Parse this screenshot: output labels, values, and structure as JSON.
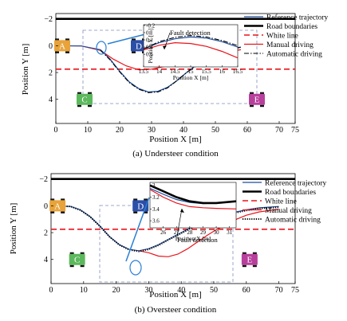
{
  "panels": [
    {
      "caption": "(a) Understeer condition",
      "chart_data": {
        "type": "line",
        "xlabel": "Position X [m]",
        "ylabel": "Position Y [m]",
        "xlim": [
          0,
          75
        ],
        "ylim": [
          5.8,
          -2.4
        ],
        "xticks": [
          0,
          10,
          20,
          30,
          40,
          50,
          60,
          70,
          75
        ],
        "yticks": [
          -2,
          0,
          2,
          4
        ],
        "series": [
          {
            "name": "Reference trajectory",
            "color": "#1f4e9e",
            "style": "solid",
            "x": [
              0,
              8,
              14,
              17,
              20,
              23,
              26,
              29,
              32,
              35,
              38,
              41,
              44,
              47,
              50,
              54,
              58
            ],
            "y": [
              0,
              0.02,
              0.3,
              1.0,
              1.9,
              2.7,
              3.2,
              3.45,
              3.4,
              3.1,
              2.6,
              2.0,
              1.45,
              1.0,
              0.6,
              0.25,
              0.1
            ]
          },
          {
            "name": "Road boundaries",
            "color": "#000000",
            "style": "thick",
            "x": [
              0,
              75
            ],
            "y": [
              -2.0,
              -2.0
            ]
          },
          {
            "name": "White line",
            "color": "#e8141b",
            "style": "dash",
            "x": [
              0,
              75
            ],
            "y": [
              1.75,
              1.75
            ]
          },
          {
            "name": "Manual driving",
            "color": "#e8141b",
            "style": "solid",
            "x": [
              0,
              8,
              14,
              18,
              22,
              26,
              30,
              34,
              38,
              42,
              46,
              50,
              54,
              58
            ],
            "y": [
              0,
              0.02,
              0.35,
              1.0,
              1.5,
              1.8,
              1.75,
              1.55,
              1.3,
              1.05,
              0.85,
              0.65,
              0.45,
              0.3
            ]
          },
          {
            "name": "Automatic driving",
            "color": "#000000",
            "style": "dashdot",
            "x": [
              14,
              17,
              20,
              23,
              26,
              29,
              32,
              35,
              38,
              41,
              44,
              47,
              50,
              54,
              58
            ],
            "y": [
              0.35,
              1.05,
              1.95,
              2.75,
              3.25,
              3.5,
              3.45,
              3.15,
              2.6,
              2.0,
              1.5,
              1.05,
              0.65,
              0.3,
              0.12
            ]
          }
        ],
        "inset": {
          "xlabel": "Position X [m]",
          "ylabel": "Position Y [m]",
          "xlim": [
            13.5,
            16.5
          ],
          "ylim": [
            0.95,
            -0.22
          ],
          "xticks": [
            13.5,
            14,
            14.5,
            15,
            15.5,
            16,
            16.5
          ],
          "xtick_labels": [
            "13.5",
            "14",
            "14.5",
            "15",
            "15.5",
            "16",
            "16.5"
          ],
          "yticks": [
            -0.2,
            0,
            0.2,
            0.4,
            0.6
          ],
          "ytick_labels": [
            "-0.2",
            "0",
            "0.2",
            "0.4",
            "0.6"
          ],
          "annotation": "Fault detection",
          "curves": [
            {
              "x": [
                13.5,
                14,
                14.5,
                15,
                15.5,
                16,
                16.5
              ],
              "y": [
                0.45,
                0.28,
                0.17,
                0.12,
                0.15,
                0.25,
                0.4
              ],
              "color": "#1f4e9e",
              "style": "solid"
            },
            {
              "x": [
                13.5,
                14,
                14.5,
                15,
                15.5,
                16,
                16.5
              ],
              "y": [
                0.48,
                0.35,
                0.28,
                0.3,
                0.38,
                0.52,
                0.7
              ],
              "color": "#e8141b",
              "style": "solid"
            },
            {
              "x": [
                13.5,
                14,
                14.5,
                15,
                15.5,
                16,
                16.5
              ],
              "y": [
                0.45,
                0.25,
                0.13,
                0.08,
                0.12,
                0.22,
                0.36
              ],
              "color": "#000000",
              "style": "dashdot"
            }
          ]
        },
        "cars": [
          {
            "label": "A",
            "color": "#e8a33a",
            "x": 2,
            "y": 0
          },
          {
            "label": "C",
            "color": "#5cb85c",
            "x": 9,
            "y": 4.0
          },
          {
            "label": "D",
            "color": "#2b4fa8",
            "x": 26,
            "y": 0
          },
          {
            "label": "E",
            "color": "#b8409c",
            "x": 63,
            "y": 4.0
          }
        ],
        "legend": "top-right"
      }
    },
    {
      "caption": "(b) Oversteer condition",
      "chart_data": {
        "type": "line",
        "xlabel": "Position X [m]",
        "ylabel": "Position Y [m]",
        "xlim": [
          0,
          75
        ],
        "ylim": [
          5.8,
          -2.4
        ],
        "xticks": [
          0,
          10,
          20,
          30,
          40,
          50,
          60,
          70,
          75
        ],
        "yticks": [
          -2,
          0,
          2,
          4
        ],
        "series": [
          {
            "name": "Reference trajectory",
            "color": "#1f4e9e",
            "style": "solid",
            "x": [
              0,
              6,
              9,
              12,
              15,
              18,
              21,
              24,
              27,
              30,
              33,
              36,
              40,
              44,
              48,
              52,
              56,
              60,
              64,
              70
            ],
            "y": [
              0,
              0.05,
              0.3,
              0.8,
              1.5,
              2.3,
              2.9,
              3.25,
              3.35,
              3.2,
              2.9,
              2.5,
              2.0,
              1.5,
              1.1,
              0.8,
              0.5,
              0.3,
              0.15,
              0.05
            ]
          },
          {
            "name": "Road boundaries",
            "color": "#000000",
            "style": "thick",
            "x": [
              0,
              75
            ],
            "y": [
              -2.0,
              -2.0
            ]
          },
          {
            "name": "White line",
            "color": "#e8141b",
            "style": "dash",
            "x": [
              0,
              75
            ],
            "y": [
              1.75,
              1.75
            ]
          },
          {
            "name": "Manual driving",
            "color": "#e8141b",
            "style": "solid",
            "x": [
              27,
              30,
              33,
              36,
              39,
              42,
              45,
              48,
              51,
              54,
              57,
              60,
              64,
              70
            ],
            "y": [
              3.35,
              3.5,
              3.75,
              3.8,
              3.6,
              3.2,
              2.7,
              2.2,
              1.75,
              1.35,
              1.0,
              0.7,
              0.45,
              0.25
            ]
          },
          {
            "name": "Automatic driving",
            "color": "#000000",
            "style": "dot",
            "x": [
              0,
              6,
              9,
              12,
              15,
              18,
              21,
              24,
              27,
              30,
              33,
              36,
              40,
              44,
              48,
              52,
              56,
              60,
              64,
              70
            ],
            "y": [
              0,
              0.05,
              0.32,
              0.82,
              1.52,
              2.32,
              2.92,
              3.28,
              3.4,
              3.25,
              2.95,
              2.55,
              2.05,
              1.55,
              1.15,
              0.85,
              0.55,
              0.35,
              0.2,
              0.1
            ]
          }
        ],
        "inset": {
          "xlabel": "Position X [m]",
          "ylabel": "",
          "xlim": [
            25,
            31.5
          ],
          "ylim": [
            3.72,
            2.95
          ],
          "xticks": [
            26,
            27,
            28,
            29,
            30,
            31
          ],
          "xtick_labels": [
            "26",
            "27",
            "28",
            "29",
            "30",
            "31"
          ],
          "yticks": [
            3,
            3.2,
            3.4,
            3.6
          ],
          "ytick_labels": [
            "3",
            "3.2",
            "3.4",
            "3.6"
          ],
          "annotation": "Fault detection",
          "curves": [
            {
              "x": [
                25,
                26,
                27,
                28,
                29,
                30,
                31.5
              ],
              "y": [
                3.05,
                3.15,
                3.24,
                3.29,
                3.31,
                3.3,
                3.27
              ],
              "color": "#1f4e9e",
              "style": "solid"
            },
            {
              "x": [
                25,
                26,
                27,
                28,
                29,
                30,
                31.5
              ],
              "y": [
                3.07,
                3.2,
                3.3,
                3.36,
                3.38,
                3.39,
                3.4
              ],
              "color": "#e8141b",
              "style": "solid"
            },
            {
              "x": [
                25,
                26,
                27,
                28,
                29,
                30,
                31.5
              ],
              "y": [
                3.0,
                3.1,
                3.2,
                3.27,
                3.3,
                3.3,
                3.27
              ],
              "color": "#000000",
              "style": "thick"
            }
          ]
        },
        "cars": [
          {
            "label": "A",
            "color": "#e8a33a",
            "x": 2,
            "y": 0
          },
          {
            "label": "C",
            "color": "#5cb85c",
            "x": 8,
            "y": 4.0
          },
          {
            "label": "D",
            "color": "#2b4fa8",
            "x": 27.5,
            "y": 0
          },
          {
            "label": "E",
            "color": "#b8409c",
            "x": 61,
            "y": 4.0
          }
        ],
        "legend": "top-right"
      }
    }
  ]
}
